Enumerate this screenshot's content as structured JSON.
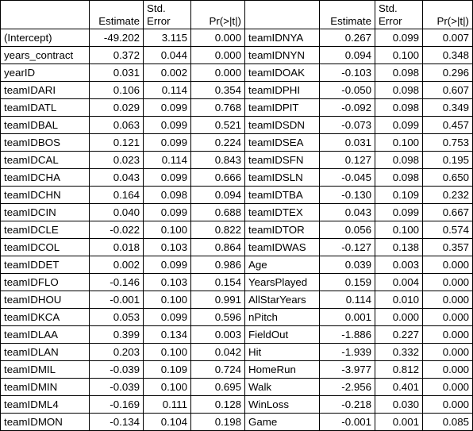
{
  "headers": {
    "estimate": "Estimate",
    "std_error": "Std. Error",
    "p_value": "Pr(>|t|)"
  },
  "rows": [
    {
      "left": {
        "term": "(Intercept)",
        "estimate": "-49.202",
        "se": "3.115",
        "p": "0.000"
      },
      "right": {
        "term": "teamIDNYA",
        "estimate": "0.267",
        "se": "0.099",
        "p": "0.007"
      }
    },
    {
      "left": {
        "term": "years_contract",
        "estimate": "0.372",
        "se": "0.044",
        "p": "0.000"
      },
      "right": {
        "term": "teamIDNYN",
        "estimate": "0.094",
        "se": "0.100",
        "p": "0.348"
      }
    },
    {
      "left": {
        "term": "yearID",
        "estimate": "0.031",
        "se": "0.002",
        "p": "0.000"
      },
      "right": {
        "term": "teamIDOAK",
        "estimate": "-0.103",
        "se": "0.098",
        "p": "0.296"
      }
    },
    {
      "left": {
        "term": "teamIDARI",
        "estimate": "0.106",
        "se": "0.114",
        "p": "0.354"
      },
      "right": {
        "term": "teamIDPHI",
        "estimate": "-0.050",
        "se": "0.098",
        "p": "0.607"
      }
    },
    {
      "left": {
        "term": "teamIDATL",
        "estimate": "0.029",
        "se": "0.099",
        "p": "0.768"
      },
      "right": {
        "term": "teamIDPIT",
        "estimate": "-0.092",
        "se": "0.098",
        "p": "0.349"
      }
    },
    {
      "left": {
        "term": "teamIDBAL",
        "estimate": "0.063",
        "se": "0.099",
        "p": "0.521"
      },
      "right": {
        "term": "teamIDSDN",
        "estimate": "-0.073",
        "se": "0.099",
        "p": "0.457"
      }
    },
    {
      "left": {
        "term": "teamIDBOS",
        "estimate": "0.121",
        "se": "0.099",
        "p": "0.224"
      },
      "right": {
        "term": "teamIDSEA",
        "estimate": "0.031",
        "se": "0.100",
        "p": "0.753"
      }
    },
    {
      "left": {
        "term": "teamIDCAL",
        "estimate": "0.023",
        "se": "0.114",
        "p": "0.843"
      },
      "right": {
        "term": "teamIDSFN",
        "estimate": "0.127",
        "se": "0.098",
        "p": "0.195"
      }
    },
    {
      "left": {
        "term": "teamIDCHA",
        "estimate": "0.043",
        "se": "0.099",
        "p": "0.666"
      },
      "right": {
        "term": "teamIDSLN",
        "estimate": "-0.045",
        "se": "0.098",
        "p": "0.650"
      }
    },
    {
      "left": {
        "term": "teamIDCHN",
        "estimate": "0.164",
        "se": "0.098",
        "p": "0.094"
      },
      "right": {
        "term": "teamIDTBA",
        "estimate": "-0.130",
        "se": "0.109",
        "p": "0.232"
      }
    },
    {
      "left": {
        "term": "teamIDCIN",
        "estimate": "0.040",
        "se": "0.099",
        "p": "0.688"
      },
      "right": {
        "term": "teamIDTEX",
        "estimate": "0.043",
        "se": "0.099",
        "p": "0.667"
      }
    },
    {
      "left": {
        "term": "teamIDCLE",
        "estimate": "-0.022",
        "se": "0.100",
        "p": "0.822"
      },
      "right": {
        "term": "teamIDTOR",
        "estimate": "0.056",
        "se": "0.100",
        "p": "0.574"
      }
    },
    {
      "left": {
        "term": "teamIDCOL",
        "estimate": "0.018",
        "se": "0.103",
        "p": "0.864"
      },
      "right": {
        "term": "teamIDWAS",
        "estimate": "-0.127",
        "se": "0.138",
        "p": "0.357"
      }
    },
    {
      "left": {
        "term": "teamIDDET",
        "estimate": "0.002",
        "se": "0.099",
        "p": "0.986"
      },
      "right": {
        "term": "Age",
        "estimate": "0.039",
        "se": "0.003",
        "p": "0.000"
      }
    },
    {
      "left": {
        "term": "teamIDFLO",
        "estimate": "-0.146",
        "se": "0.103",
        "p": "0.154"
      },
      "right": {
        "term": "YearsPlayed",
        "estimate": "0.159",
        "se": "0.004",
        "p": "0.000"
      }
    },
    {
      "left": {
        "term": "teamIDHOU",
        "estimate": "-0.001",
        "se": "0.100",
        "p": "0.991"
      },
      "right": {
        "term": "AllStarYears",
        "estimate": "0.114",
        "se": "0.010",
        "p": "0.000"
      }
    },
    {
      "left": {
        "term": "teamIDKCA",
        "estimate": "0.053",
        "se": "0.099",
        "p": "0.596"
      },
      "right": {
        "term": "nPitch",
        "estimate": "0.001",
        "se": "0.000",
        "p": "0.000"
      }
    },
    {
      "left": {
        "term": "teamIDLAA",
        "estimate": "0.399",
        "se": "0.134",
        "p": "0.003"
      },
      "right": {
        "term": "FieldOut",
        "estimate": "-1.886",
        "se": "0.227",
        "p": "0.000"
      }
    },
    {
      "left": {
        "term": "teamIDLAN",
        "estimate": "0.203",
        "se": "0.100",
        "p": "0.042"
      },
      "right": {
        "term": "Hit",
        "estimate": "-1.939",
        "se": "0.332",
        "p": "0.000"
      }
    },
    {
      "left": {
        "term": "teamIDMIL",
        "estimate": "-0.039",
        "se": "0.109",
        "p": "0.724"
      },
      "right": {
        "term": "HomeRun",
        "estimate": "-3.977",
        "se": "0.812",
        "p": "0.000"
      }
    },
    {
      "left": {
        "term": "teamIDMIN",
        "estimate": "-0.039",
        "se": "0.100",
        "p": "0.695"
      },
      "right": {
        "term": "Walk",
        "estimate": "-2.956",
        "se": "0.401",
        "p": "0.000"
      }
    },
    {
      "left": {
        "term": "teamIDML4",
        "estimate": "-0.169",
        "se": "0.111",
        "p": "0.128"
      },
      "right": {
        "term": "WinLoss",
        "estimate": "-0.218",
        "se": "0.030",
        "p": "0.000"
      }
    },
    {
      "left": {
        "term": "teamIDMON",
        "estimate": "-0.134",
        "se": "0.104",
        "p": "0.198"
      },
      "right": {
        "term": "Game",
        "estimate": "-0.001",
        "se": "0.001",
        "p": "0.085"
      }
    }
  ]
}
